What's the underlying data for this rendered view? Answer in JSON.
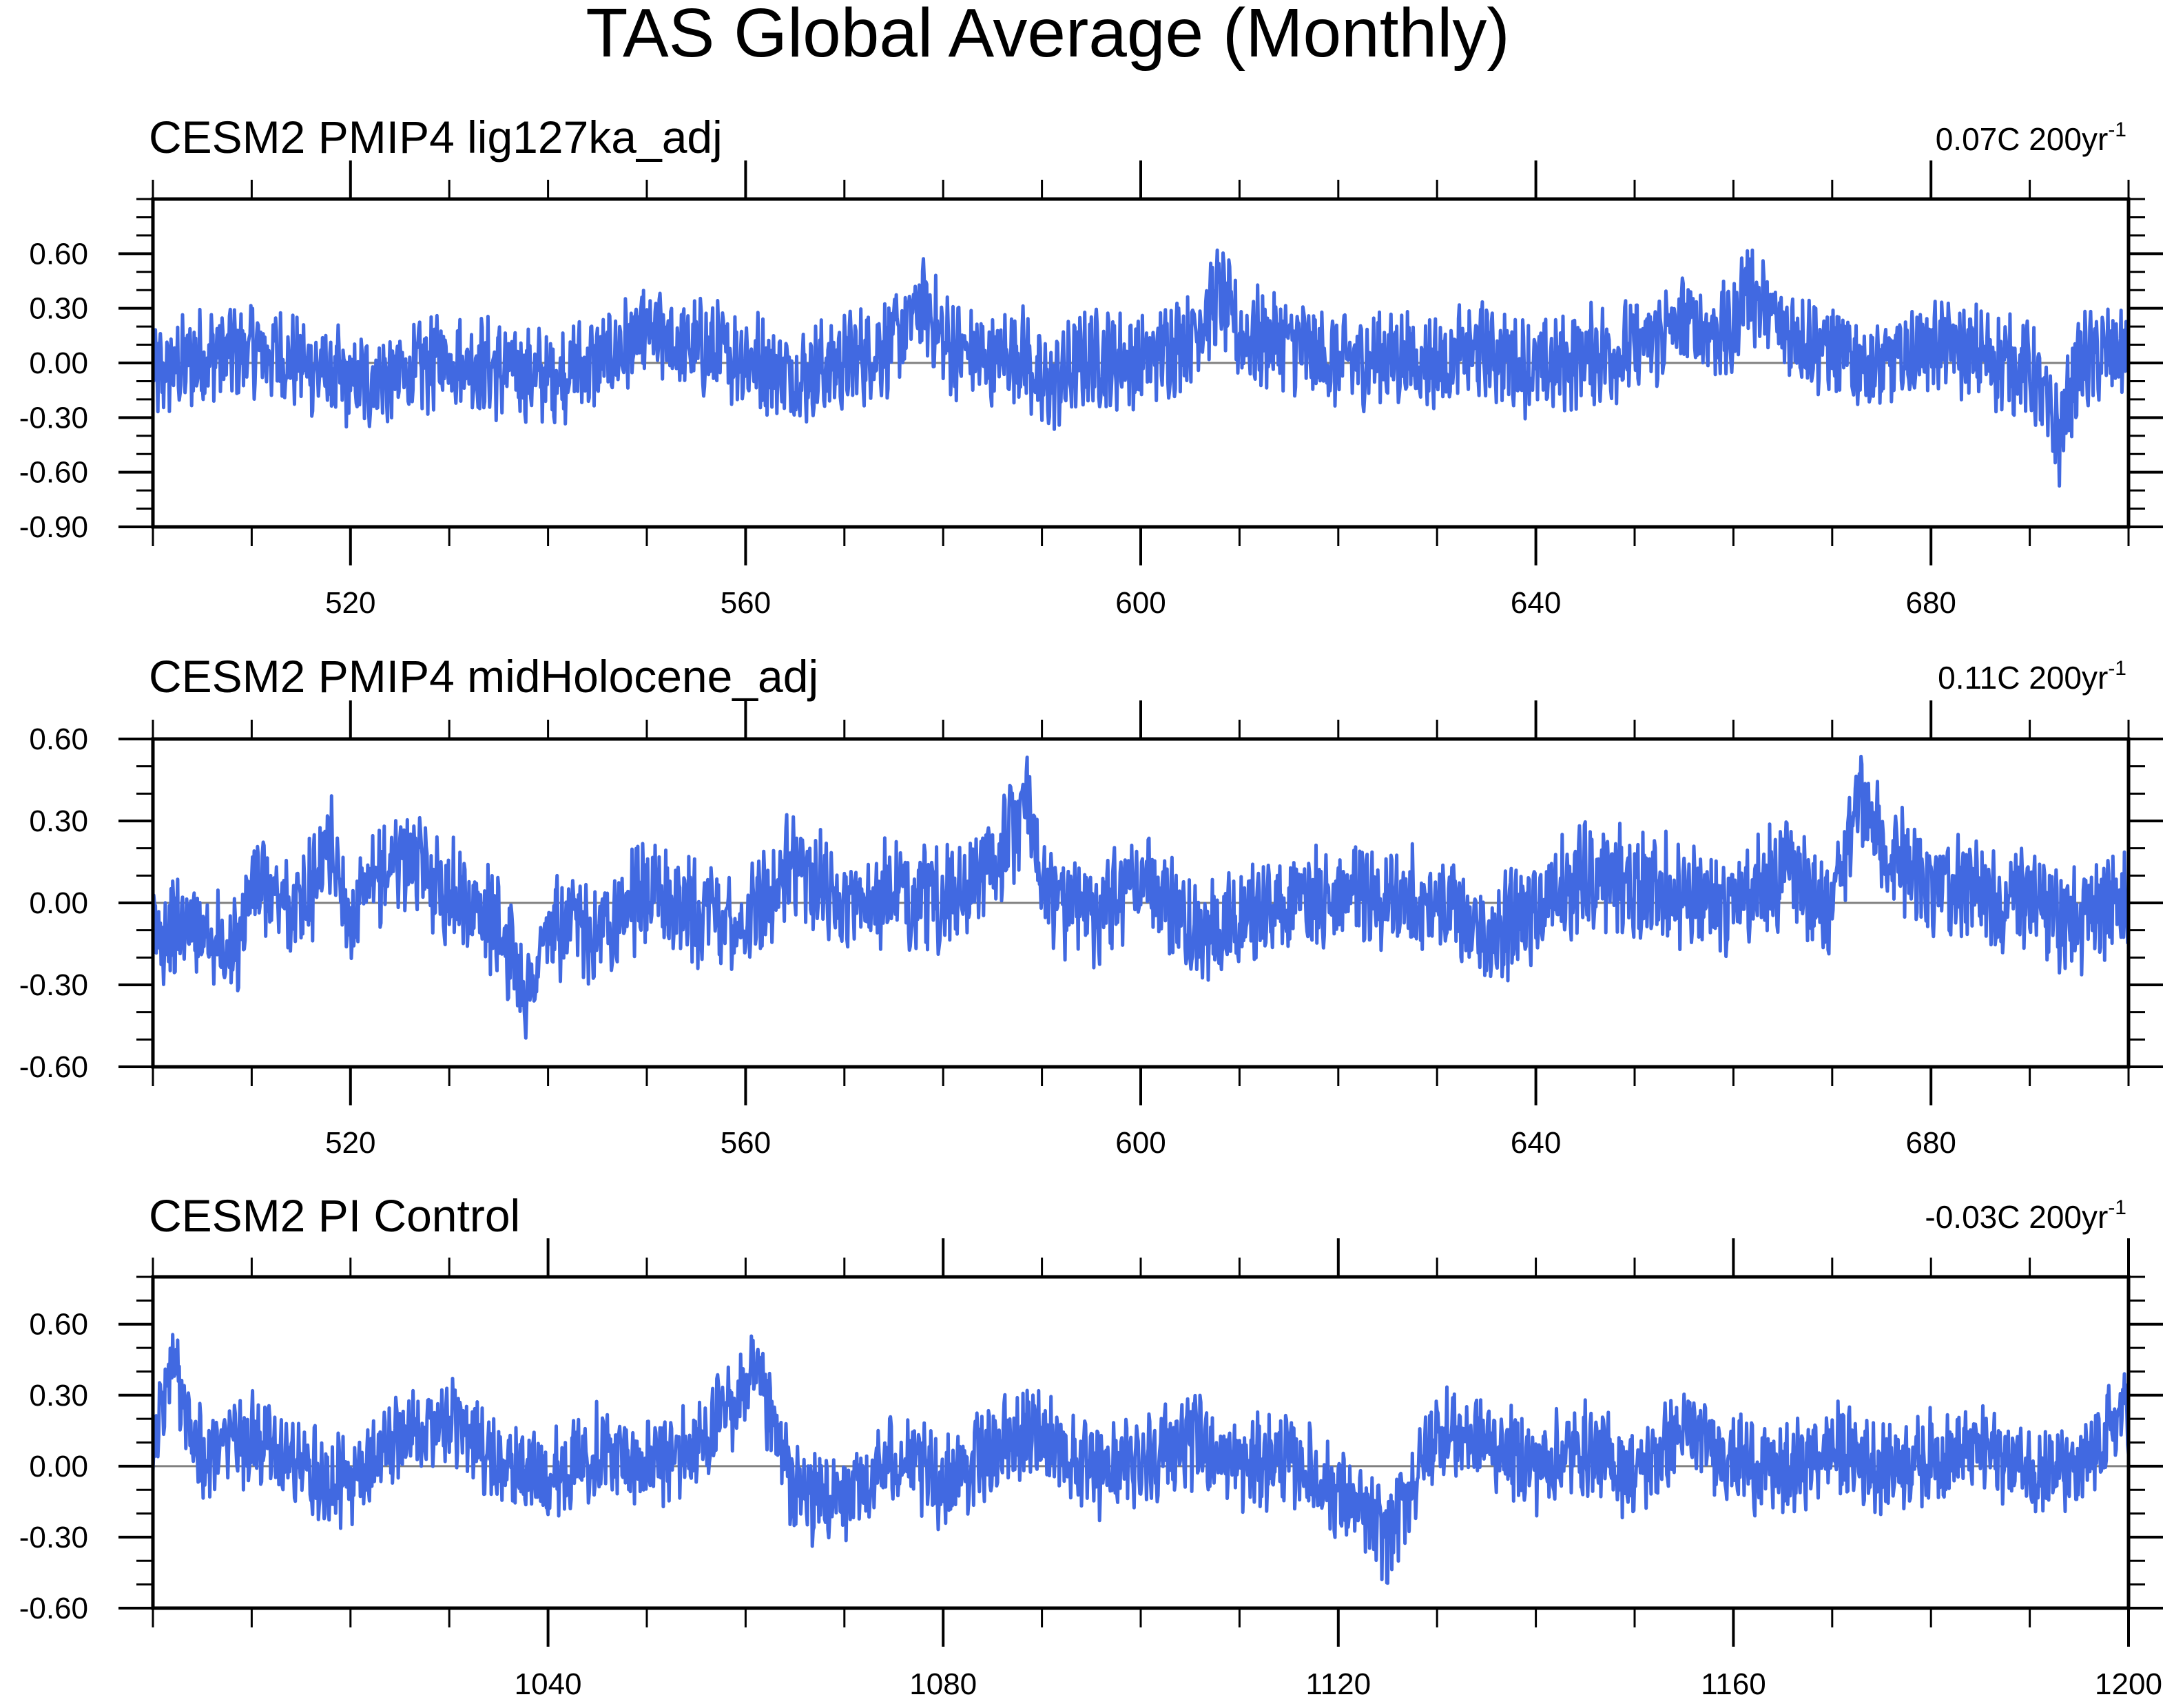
{
  "chart_data": {
    "title": "TAS Global Average (Monthly)",
    "type": "line",
    "series_color": "#4169E1",
    "zero_line_color": "#808080",
    "panels": [
      {
        "title": "CESM2 PMIP4 lig127ka_adj",
        "trend_text": "0.07C 200yr",
        "trend_exp": "-1",
        "xlim": [
          500,
          700
        ],
        "ylim": [
          -0.9,
          0.9
        ],
        "xticks": [
          520,
          560,
          600,
          640,
          680
        ],
        "yticks": [
          0.6,
          0.3,
          0.0,
          -0.3,
          -0.6,
          -0.9
        ],
        "ytick_labels": [
          "0.60",
          "0.30",
          "0.00",
          "-0.30",
          "-0.60",
          "-0.90"
        ],
        "x": [
          500,
          505,
          510,
          515,
          520,
          525,
          530,
          535,
          540,
          545,
          550,
          555,
          560,
          565,
          570,
          575,
          578,
          580,
          585,
          588,
          590,
          595,
          600,
          605,
          608,
          610,
          615,
          620,
          625,
          630,
          635,
          640,
          645,
          650,
          655,
          660,
          661,
          665,
          670,
          675,
          680,
          685,
          690,
          693,
          695,
          700
        ],
        "y": [
          -0.1,
          0.05,
          0.1,
          0.0,
          -0.15,
          -0.1,
          0.05,
          -0.05,
          -0.1,
          0.0,
          0.2,
          0.1,
          0.05,
          -0.1,
          0.0,
          0.15,
          0.45,
          0.15,
          0.0,
          0.1,
          -0.2,
          0.05,
          0.0,
          0.2,
          0.5,
          0.2,
          0.15,
          0.0,
          0.05,
          0.0,
          0.1,
          -0.05,
          0.05,
          0.1,
          0.3,
          0.2,
          0.6,
          0.25,
          0.1,
          -0.05,
          0.15,
          0.05,
          -0.05,
          -0.55,
          0.0,
          0.1
        ]
      },
      {
        "title": "CESM2 PMIP4 midHolocene_adj",
        "trend_text": "0.11C 200yr",
        "trend_exp": "-1",
        "xlim": [
          500,
          700
        ],
        "ylim": [
          -0.6,
          0.6
        ],
        "xticks": [
          520,
          560,
          600,
          640,
          680
        ],
        "yticks": [
          0.6,
          0.3,
          0.0,
          -0.3,
          -0.6
        ],
        "ytick_labels": [
          "0.60",
          "0.30",
          "0.00",
          "-0.30",
          "-0.60"
        ],
        "x": [
          500,
          505,
          508,
          510,
          515,
          518,
          520,
          525,
          530,
          535,
          538,
          540,
          545,
          550,
          555,
          560,
          565,
          570,
          575,
          580,
          585,
          589,
          590,
          595,
          600,
          605,
          610,
          615,
          620,
          625,
          630,
          635,
          640,
          645,
          650,
          655,
          660,
          665,
          670,
          673,
          675,
          680,
          685,
          690,
          695,
          700
        ],
        "y": [
          -0.15,
          -0.1,
          -0.3,
          0.1,
          -0.05,
          0.3,
          -0.1,
          0.25,
          0.05,
          -0.1,
          -0.45,
          -0.15,
          -0.1,
          0.05,
          -0.05,
          -0.1,
          0.2,
          0.0,
          0.05,
          0.0,
          0.2,
          0.5,
          0.05,
          -0.05,
          0.15,
          -0.15,
          -0.05,
          0.0,
          0.05,
          0.05,
          0.0,
          -0.15,
          -0.05,
          0.15,
          0.1,
          0.05,
          0.0,
          0.15,
          -0.05,
          0.5,
          0.3,
          0.1,
          0.05,
          0.0,
          -0.1,
          0.05
        ]
      },
      {
        "title": "CESM2 PI Control",
        "trend_text": "-0.03C 200yr",
        "trend_exp": "-1",
        "xlim": [
          1000,
          1200
        ],
        "ylim": [
          -0.6,
          0.8
        ],
        "xticks": [
          1040,
          1080,
          1120,
          1160,
          1200
        ],
        "yticks": [
          0.6,
          0.3,
          0.0,
          -0.3,
          -0.6
        ],
        "ytick_labels": [
          "0.60",
          "0.30",
          "0.00",
          "-0.30",
          "-0.60"
        ],
        "x": [
          1000,
          1002,
          1005,
          1010,
          1015,
          1020,
          1025,
          1030,
          1035,
          1040,
          1045,
          1050,
          1055,
          1061,
          1065,
          1070,
          1075,
          1080,
          1085,
          1090,
          1095,
          1100,
          1105,
          1110,
          1115,
          1120,
          1125,
          1130,
          1135,
          1140,
          1145,
          1150,
          1155,
          1160,
          1165,
          1170,
          1175,
          1180,
          1185,
          1190,
          1195,
          1200
        ],
        "y": [
          0.1,
          0.6,
          0.05,
          0.15,
          0.0,
          -0.1,
          0.15,
          0.3,
          0.0,
          -0.05,
          0.1,
          0.0,
          0.1,
          0.5,
          -0.15,
          -0.2,
          0.05,
          -0.1,
          0.1,
          0.2,
          -0.05,
          0.05,
          0.15,
          0.0,
          0.05,
          -0.15,
          -0.4,
          0.2,
          0.15,
          0.0,
          0.1,
          -0.05,
          0.2,
          0.05,
          -0.05,
          0.1,
          0.0,
          0.05,
          0.1,
          0.0,
          -0.05,
          0.35
        ]
      }
    ]
  }
}
